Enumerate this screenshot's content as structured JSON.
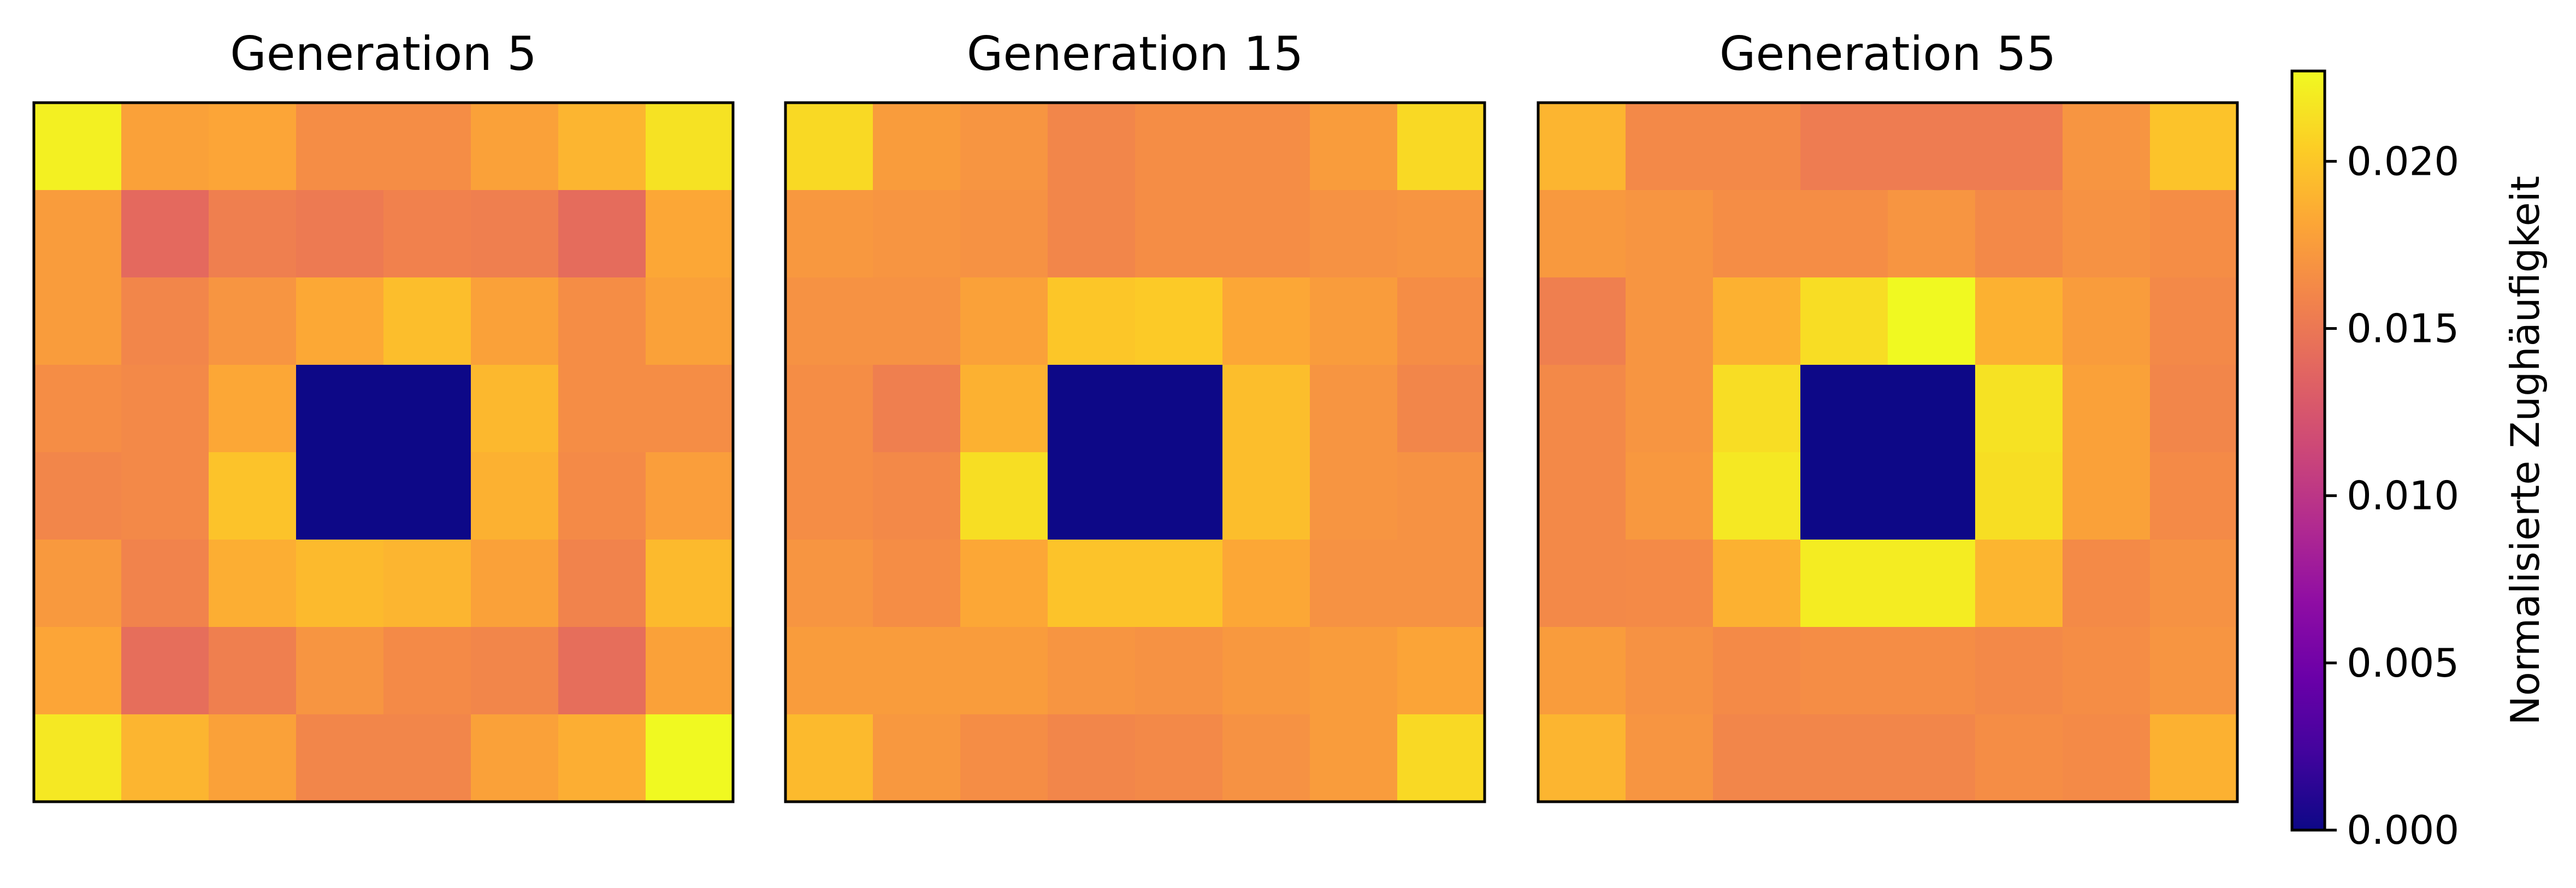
{
  "chart_data": {
    "type": "heatmap",
    "colormap": "plasma",
    "value_range": [
      0.0,
      0.0227
    ],
    "panels": [
      {
        "title": "Generation 5",
        "values": [
          [
            0.0222,
            0.0178,
            0.0181,
            0.0165,
            0.0165,
            0.0178,
            0.019,
            0.0215
          ],
          [
            0.0175,
            0.014,
            0.0155,
            0.0152,
            0.0157,
            0.0155,
            0.0142,
            0.0182
          ],
          [
            0.0175,
            0.016,
            0.017,
            0.0183,
            0.0195,
            0.0178,
            0.0165,
            0.0178
          ],
          [
            0.0165,
            0.0162,
            0.0182,
            0.0,
            0.0,
            0.0192,
            0.0165,
            0.0165
          ],
          [
            0.016,
            0.0162,
            0.0198,
            0.0,
            0.0,
            0.0188,
            0.0163,
            0.0176
          ],
          [
            0.0173,
            0.0158,
            0.0186,
            0.0193,
            0.019,
            0.0178,
            0.0158,
            0.0193
          ],
          [
            0.0181,
            0.0143,
            0.0155,
            0.017,
            0.0163,
            0.016,
            0.0143,
            0.0178
          ],
          [
            0.0218,
            0.019,
            0.0178,
            0.016,
            0.016,
            0.0178,
            0.0186,
            0.0227
          ]
        ]
      },
      {
        "title": "Generation 15",
        "values": [
          [
            0.021,
            0.0175,
            0.017,
            0.016,
            0.0165,
            0.0165,
            0.0175,
            0.021
          ],
          [
            0.0172,
            0.017,
            0.0168,
            0.016,
            0.0165,
            0.0165,
            0.0168,
            0.017
          ],
          [
            0.0168,
            0.0168,
            0.0178,
            0.02,
            0.0202,
            0.0182,
            0.0175,
            0.0165
          ],
          [
            0.0165,
            0.0155,
            0.0188,
            0.0,
            0.0,
            0.0195,
            0.017,
            0.016
          ],
          [
            0.0165,
            0.0162,
            0.0213,
            0.0,
            0.0,
            0.0195,
            0.017,
            0.0168
          ],
          [
            0.017,
            0.0165,
            0.0182,
            0.0198,
            0.0198,
            0.0182,
            0.0168,
            0.0168
          ],
          [
            0.0175,
            0.0175,
            0.0175,
            0.017,
            0.0168,
            0.0172,
            0.0175,
            0.018
          ],
          [
            0.0193,
            0.0172,
            0.0165,
            0.016,
            0.0162,
            0.0168,
            0.0175,
            0.021
          ]
        ]
      },
      {
        "title": "Generation 55",
        "values": [
          [
            0.019,
            0.0162,
            0.0162,
            0.0153,
            0.0153,
            0.0153,
            0.017,
            0.0198
          ],
          [
            0.0173,
            0.017,
            0.0165,
            0.0165,
            0.017,
            0.0162,
            0.0168,
            0.0165
          ],
          [
            0.0155,
            0.017,
            0.0188,
            0.0212,
            0.0227,
            0.0188,
            0.0175,
            0.0162
          ],
          [
            0.0162,
            0.017,
            0.0212,
            0.0,
            0.0,
            0.0215,
            0.0178,
            0.016
          ],
          [
            0.0162,
            0.0172,
            0.0218,
            0.0,
            0.0,
            0.0213,
            0.0178,
            0.0163
          ],
          [
            0.0162,
            0.0163,
            0.0188,
            0.022,
            0.022,
            0.019,
            0.0163,
            0.0168
          ],
          [
            0.0175,
            0.0168,
            0.0163,
            0.0165,
            0.0165,
            0.0162,
            0.0165,
            0.017
          ],
          [
            0.019,
            0.017,
            0.016,
            0.016,
            0.016,
            0.0165,
            0.0163,
            0.0188
          ]
        ]
      }
    ],
    "colorbar": {
      "label": "Normalisierte Zughäufigkeit",
      "ticks": [
        0.0,
        0.005,
        0.01,
        0.015,
        0.02
      ],
      "tick_labels": [
        "0.000",
        "0.005",
        "0.010",
        "0.015",
        "0.020"
      ]
    }
  }
}
